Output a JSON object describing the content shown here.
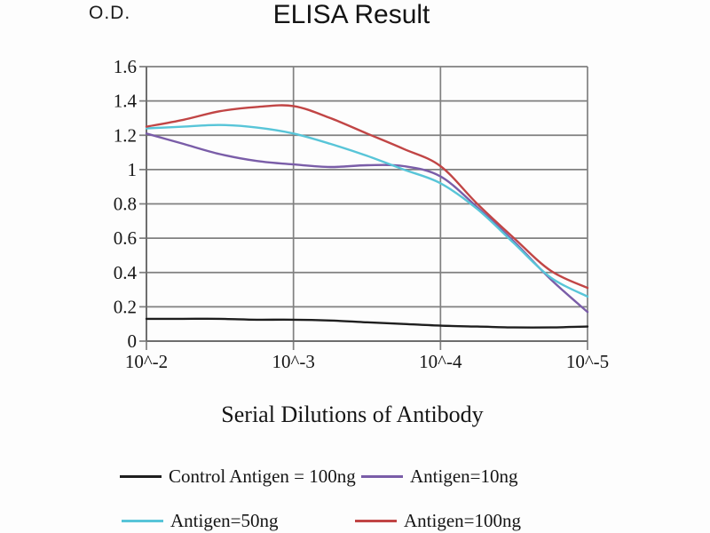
{
  "od_label": "O.D.",
  "title": "ELISA Result",
  "xlabel": "Serial Dilutions of Antibody",
  "colors": {
    "grid": "#808080",
    "axis": "#6e6e6e",
    "text": "#151515"
  },
  "chart_data": {
    "type": "line",
    "title": "ELISA Result",
    "ylabel": "O.D.",
    "xlabel": "Serial Dilutions of Antibody",
    "grid": true,
    "legend_position": "bottom",
    "ylim": [
      0,
      1.6
    ],
    "y_ticks": [
      0,
      0.2,
      0.4,
      0.6,
      0.8,
      1.0,
      1.2,
      1.4,
      1.6
    ],
    "y_tick_labels": [
      "0",
      "0.2",
      "0.4",
      "0.6",
      "0.8",
      "1",
      "1.2",
      "1.4",
      "1.6"
    ],
    "x_tick_labels": [
      "10^-2",
      "10^-3",
      "10^-4",
      "10^-5"
    ],
    "x": [
      0,
      0.25,
      0.5,
      0.75,
      1,
      1.25,
      1.5,
      1.75,
      2,
      2.25,
      2.5,
      2.75,
      3
    ],
    "x_range": [
      0,
      3
    ],
    "series": [
      {
        "name": "Control Antigen = 100ng",
        "color": "#1e1e1e",
        "values": [
          0.13,
          0.13,
          0.13,
          0.125,
          0.125,
          0.12,
          0.11,
          0.1,
          0.09,
          0.085,
          0.08,
          0.08,
          0.085
        ]
      },
      {
        "name": "Antigen=10ng",
        "color": "#7a5da8",
        "values": [
          1.21,
          1.15,
          1.09,
          1.05,
          1.03,
          1.015,
          1.025,
          1.02,
          0.96,
          0.78,
          0.58,
          0.36,
          0.17
        ]
      },
      {
        "name": "Antigen=50ng",
        "color": "#58c5d8",
        "values": [
          1.24,
          1.25,
          1.26,
          1.245,
          1.21,
          1.15,
          1.08,
          1.0,
          0.92,
          0.77,
          0.57,
          0.37,
          0.26
        ]
      },
      {
        "name": "Antigen=100ng",
        "color": "#c14545",
        "values": [
          1.25,
          1.29,
          1.34,
          1.365,
          1.37,
          1.3,
          1.21,
          1.12,
          1.02,
          0.8,
          0.6,
          0.41,
          0.31
        ]
      }
    ]
  }
}
